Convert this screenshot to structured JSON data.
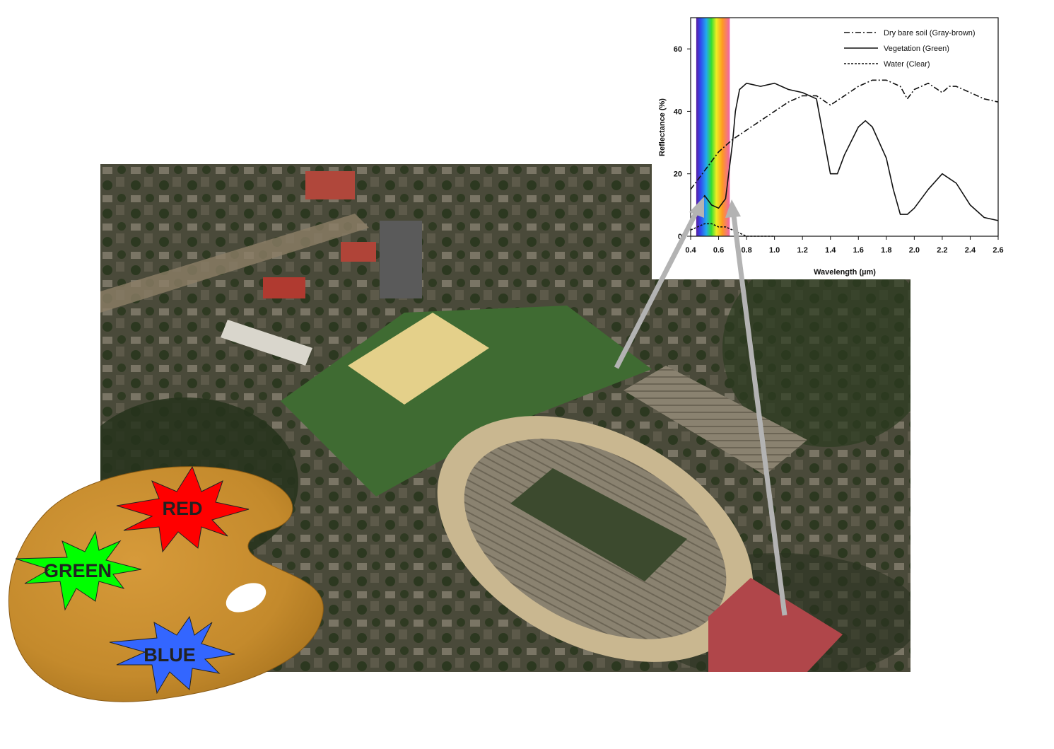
{
  "chart_data": {
    "type": "line",
    "title": "",
    "xlabel": "Wavelength (µm)",
    "ylabel": "Reflectance (%)",
    "xlim": [
      0.4,
      2.6
    ],
    "ylim": [
      0,
      70
    ],
    "xticks": [
      "0.4",
      "0.6",
      "0.8",
      "1.0",
      "1.2",
      "1.4",
      "1.6",
      "1.8",
      "2.0",
      "2.2",
      "2.4",
      "2.6"
    ],
    "yticks": [
      "0",
      "20",
      "40",
      "60"
    ],
    "legend_position": "top-right",
    "visible_band": [
      0.44,
      0.68
    ],
    "series": [
      {
        "name": "Dry bare soil (Gray-brown)",
        "style": "dash-dot",
        "x": [
          0.4,
          0.5,
          0.6,
          0.7,
          0.8,
          0.9,
          1.0,
          1.1,
          1.2,
          1.3,
          1.4,
          1.5,
          1.6,
          1.7,
          1.8,
          1.9,
          1.95,
          2.0,
          2.1,
          2.2,
          2.25,
          2.3,
          2.4,
          2.5,
          2.6
        ],
        "y": [
          15,
          21,
          27,
          31,
          34,
          37,
          40,
          43,
          45,
          45,
          42,
          45,
          48,
          50,
          50,
          48,
          44,
          47,
          49,
          46,
          48,
          48,
          46,
          44,
          43
        ]
      },
      {
        "name": "Vegetation (Green)",
        "style": "solid",
        "x": [
          0.4,
          0.45,
          0.5,
          0.55,
          0.6,
          0.65,
          0.7,
          0.72,
          0.75,
          0.8,
          0.9,
          1.0,
          1.05,
          1.1,
          1.2,
          1.3,
          1.35,
          1.4,
          1.45,
          1.5,
          1.6,
          1.65,
          1.7,
          1.8,
          1.85,
          1.9,
          1.95,
          2.0,
          2.1,
          2.2,
          2.3,
          2.4,
          2.5,
          2.6
        ],
        "y": [
          8,
          9,
          13,
          10,
          9,
          12,
          30,
          40,
          47,
          49,
          48,
          49,
          48,
          47,
          46,
          44,
          32,
          20,
          20,
          26,
          35,
          37,
          35,
          25,
          15,
          7,
          7,
          9,
          15,
          20,
          17,
          10,
          6,
          5
        ]
      },
      {
        "name": "Water (Clear)",
        "style": "dashed",
        "x": [
          0.4,
          0.45,
          0.5,
          0.55,
          0.6,
          0.65,
          0.7,
          0.75,
          0.8,
          0.9,
          1.0
        ],
        "y": [
          2,
          3,
          4,
          4,
          3,
          3,
          2,
          1,
          0,
          0,
          0
        ]
      }
    ]
  },
  "palette": {
    "red_label": "RED",
    "green_label": "GREEN",
    "blue_label": "BLUE",
    "colors": {
      "red": "#ff0000",
      "green": "#00ff00",
      "blue": "#3366ff",
      "wood": "#c8902e"
    }
  },
  "photo": {
    "subject": "aerial-photo-stadium"
  },
  "arrow_color": "#b3b3b3"
}
